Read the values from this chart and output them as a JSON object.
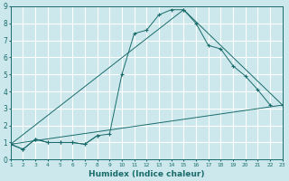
{
  "title": "",
  "xlabel": "Humidex (Indice chaleur)",
  "background_color": "#cce8ec",
  "grid_color": "#ffffff",
  "line_color": "#1a6b6b",
  "xlim": [
    1,
    23
  ],
  "ylim": [
    0,
    9
  ],
  "xticks": [
    1,
    2,
    3,
    4,
    5,
    6,
    7,
    8,
    9,
    10,
    11,
    12,
    13,
    14,
    15,
    16,
    17,
    18,
    19,
    20,
    21,
    22,
    23
  ],
  "yticks": [
    0,
    1,
    2,
    3,
    4,
    5,
    6,
    7,
    8,
    9
  ],
  "series": [
    {
      "x": [
        1,
        2,
        3,
        4,
        5,
        6,
        7,
        8,
        9,
        10,
        11,
        12,
        13,
        14,
        15,
        16,
        17,
        18,
        19,
        20,
        21,
        22
      ],
      "y": [
        0.9,
        0.6,
        1.2,
        1.0,
        1.0,
        1.0,
        0.9,
        1.4,
        1.5,
        5.0,
        7.4,
        7.6,
        8.5,
        8.8,
        8.8,
        8.0,
        6.7,
        6.5,
        5.5,
        4.9,
        4.1,
        3.2
      ]
    },
    {
      "x": [
        1,
        15,
        23
      ],
      "y": [
        0.9,
        8.8,
        3.2
      ]
    },
    {
      "x": [
        1,
        23
      ],
      "y": [
        0.9,
        3.2
      ]
    },
    {
      "x": [
        1,
        2,
        3,
        4,
        5,
        6,
        7,
        8
      ],
      "y": [
        0.9,
        0.6,
        1.2,
        1.0,
        1.0,
        1.0,
        0.9,
        1.4
      ]
    }
  ]
}
